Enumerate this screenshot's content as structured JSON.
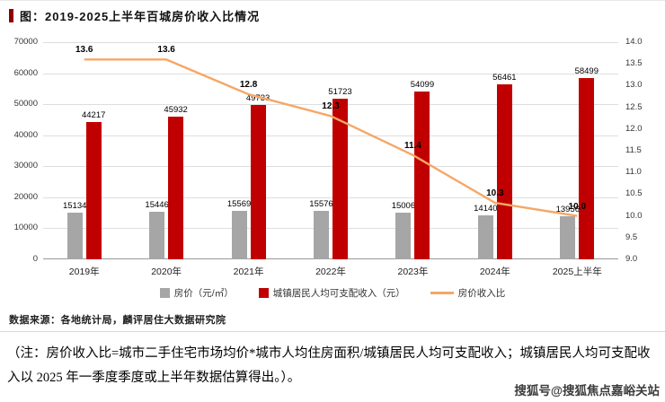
{
  "title": "图：2019-2025上半年百城房价收入比情况",
  "source": "数据来源：各地统计局，麟评居住大数据研究院",
  "note": "（注：房价收入比=城市二手住宅市场均价*城市人均住房面积/城镇居民人均可支配收入；城镇居民人均可支配收入以 2025 年一季度季度或上半年数据估算得出。）。",
  "watermark": "搜狐号@搜狐焦点嘉峪关站",
  "colors": {
    "price_bar": "#a6a6a6",
    "income_bar": "#c00000",
    "ratio_line": "#f5a767",
    "title_accent": "#8b0000"
  },
  "chart_data": {
    "type": "bar",
    "subtype": "grouped-bars-with-line",
    "categories": [
      "2019年",
      "2020年",
      "2021年",
      "2022年",
      "2023年",
      "2024年",
      "2025上半年"
    ],
    "series": [
      {
        "name": "房价（元/㎡）",
        "kind": "bar",
        "axis": "left",
        "color": "#a6a6a6",
        "values": [
          15134,
          15446,
          15569,
          15576,
          15006,
          14140,
          13956
        ]
      },
      {
        "name": "城镇居民人均可支配收入（元）",
        "kind": "bar",
        "axis": "left",
        "color": "#c00000",
        "values": [
          44217,
          45932,
          49733,
          51723,
          54099,
          56461,
          58499
        ]
      },
      {
        "name": "房价收入比",
        "kind": "line",
        "axis": "right",
        "color": "#f5a767",
        "values": [
          13.6,
          13.6,
          12.8,
          12.3,
          11.4,
          10.3,
          10.0
        ]
      }
    ],
    "left_axis": {
      "min": 0,
      "max": 70000,
      "step": 10000,
      "ticks": [
        "70000",
        "60000",
        "50000",
        "40000",
        "30000",
        "20000",
        "10000",
        "0"
      ]
    },
    "right_axis": {
      "min": 9.0,
      "max": 14.0,
      "step": 0.5,
      "ticks": [
        "14.0",
        "13.5",
        "13.0",
        "12.5",
        "12.0",
        "11.5",
        "11.0",
        "10.5",
        "10.0",
        "9.5",
        "9.0"
      ]
    },
    "grid": true,
    "legend_position": "bottom"
  }
}
